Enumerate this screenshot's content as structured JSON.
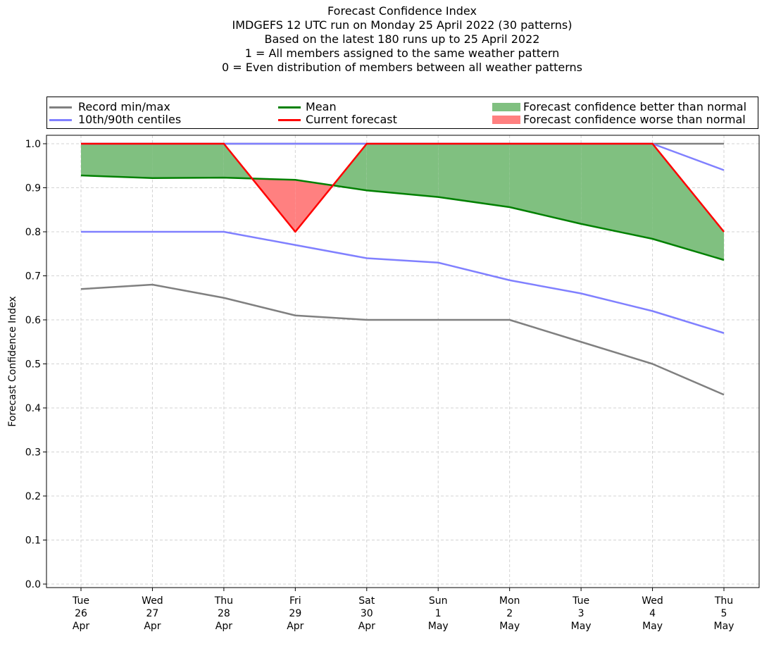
{
  "title_lines": [
    "Forecast Confidence Index",
    "IMDGEFS 12 UTC run on Monday 25 April 2022 (30 patterns)",
    "Based on the latest 180 runs up to 25 April 2022",
    "1 = All members assigned to the same weather pattern",
    "0 = Even distribution of members between all weather patterns"
  ],
  "legend": {
    "record": "Record min/max",
    "centiles": "10th/90th centiles",
    "mean": "Mean",
    "current": "Current forecast",
    "better": "Forecast confidence better than normal",
    "worse": "Forecast confidence worse than normal"
  },
  "colors": {
    "record": "#808080",
    "centiles": "#8080ff",
    "mean": "#008000",
    "current": "#ff0000",
    "better": "#80c080",
    "worse": "#ff8080",
    "grid": "#d3d3d3"
  },
  "chart_data": {
    "type": "line",
    "ylabel": "Forecast Confidence Index",
    "xlabel": "",
    "ylim": [
      0.0,
      1.0
    ],
    "yticks": [
      "0.0",
      "0.1",
      "0.2",
      "0.3",
      "0.4",
      "0.5",
      "0.6",
      "0.7",
      "0.8",
      "0.9",
      "1.0"
    ],
    "grid": true,
    "legend_position": "top",
    "categories": [
      [
        "Tue",
        "26",
        "Apr"
      ],
      [
        "Wed",
        "27",
        "Apr"
      ],
      [
        "Thu",
        "28",
        "Apr"
      ],
      [
        "Fri",
        "29",
        "Apr"
      ],
      [
        "Sat",
        "30",
        "Apr"
      ],
      [
        "Sun",
        "1",
        "May"
      ],
      [
        "Mon",
        "2",
        "May"
      ],
      [
        "Tue",
        "3",
        "May"
      ],
      [
        "Wed",
        "4",
        "May"
      ],
      [
        "Thu",
        "5",
        "May"
      ]
    ],
    "series": [
      {
        "name": "Record min",
        "values": [
          0.67,
          0.68,
          0.65,
          0.61,
          0.6,
          0.6,
          0.6,
          0.55,
          0.5,
          0.43
        ]
      },
      {
        "name": "Record max",
        "values": [
          1.0,
          1.0,
          1.0,
          1.0,
          1.0,
          1.0,
          1.0,
          1.0,
          1.0,
          1.0
        ]
      },
      {
        "name": "10th centile",
        "values": [
          0.8,
          0.8,
          0.8,
          0.77,
          0.74,
          0.73,
          0.69,
          0.66,
          0.62,
          0.57
        ]
      },
      {
        "name": "90th centile",
        "values": [
          1.0,
          1.0,
          1.0,
          1.0,
          1.0,
          1.0,
          1.0,
          1.0,
          1.0,
          0.94
        ]
      },
      {
        "name": "Mean",
        "values": [
          0.928,
          0.922,
          0.923,
          0.918,
          0.894,
          0.879,
          0.856,
          0.818,
          0.784,
          0.736
        ]
      },
      {
        "name": "Current forecast",
        "values": [
          1.0,
          1.0,
          1.0,
          0.8,
          1.0,
          1.0,
          1.0,
          1.0,
          1.0,
          0.8
        ]
      }
    ]
  }
}
